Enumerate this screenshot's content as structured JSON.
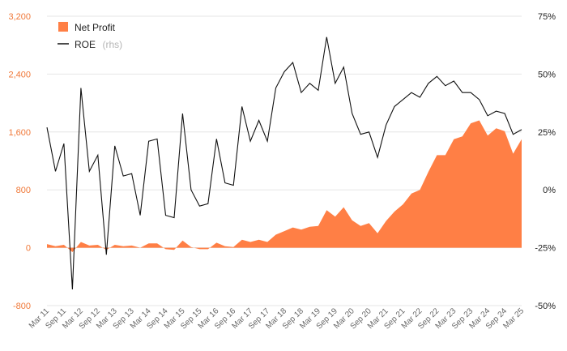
{
  "chart_data": {
    "type": "area+line",
    "legend": {
      "position": "top-left",
      "entries": [
        {
          "label": "Net Profit",
          "suffix": "",
          "swatch": "area"
        },
        {
          "label": "ROE",
          "suffix": "(rhs)",
          "swatch": "line"
        }
      ]
    },
    "left_axis": {
      "ticks": [
        "3,200",
        "2,400",
        "1,600",
        "800",
        "0",
        "-800"
      ],
      "min": -800,
      "max": 3200
    },
    "right_axis": {
      "ticks": [
        "75%",
        "50%",
        "25%",
        "0%",
        "-25%",
        "-50%"
      ],
      "min": -50,
      "max": 75
    },
    "x_ticks": [
      "Mar 11",
      "Sep 11",
      "Mar 12",
      "Sep 12",
      "Mar 13",
      "Sep 13",
      "Mar 14",
      "Sep 14",
      "Mar 15",
      "Sep 15",
      "Mar 16",
      "Sep 16",
      "Mar 17",
      "Sep 17",
      "Mar 18",
      "Sep 18",
      "Mar 19",
      "Sep 19",
      "Mar 20",
      "Sep 20",
      "Mar 21",
      "Sep 21",
      "Mar 22",
      "Sep 22",
      "Mar 23",
      "Sep 23",
      "Mar 24",
      "Sep 24",
      "Mar 25"
    ],
    "grid": "horizontal",
    "colors": {
      "net_profit": "#ff7f45",
      "roe": "#111111",
      "left_axis_text": "#f07838"
    },
    "series": [
      {
        "name": "Net Profit",
        "axis": "left",
        "values": [
          50,
          20,
          40,
          -60,
          80,
          30,
          40,
          -30,
          40,
          20,
          30,
          0,
          60,
          60,
          -20,
          -30,
          100,
          10,
          -20,
          -20,
          70,
          20,
          10,
          110,
          80,
          110,
          80,
          180,
          230,
          280,
          250,
          290,
          300,
          520,
          430,
          560,
          380,
          300,
          340,
          200,
          370,
          500,
          600,
          750,
          800,
          1050,
          1280,
          1280,
          1500,
          1540,
          1720,
          1760,
          1550,
          1650,
          1610,
          1300,
          1500
        ]
      },
      {
        "name": "ROE",
        "axis": "right",
        "values": [
          27,
          8,
          20,
          -43,
          44,
          8,
          15,
          -28,
          19,
          6,
          7,
          -11,
          21,
          22,
          -11,
          -12,
          33,
          0,
          -7,
          -6,
          22,
          3,
          2,
          36,
          21,
          30,
          21,
          44,
          51,
          55,
          42,
          46,
          43,
          66,
          46,
          53,
          33,
          24,
          25,
          14,
          28,
          36,
          39,
          42,
          40,
          46,
          49,
          45,
          47,
          42,
          42,
          39,
          32,
          34,
          33,
          24,
          26
        ]
      }
    ]
  }
}
